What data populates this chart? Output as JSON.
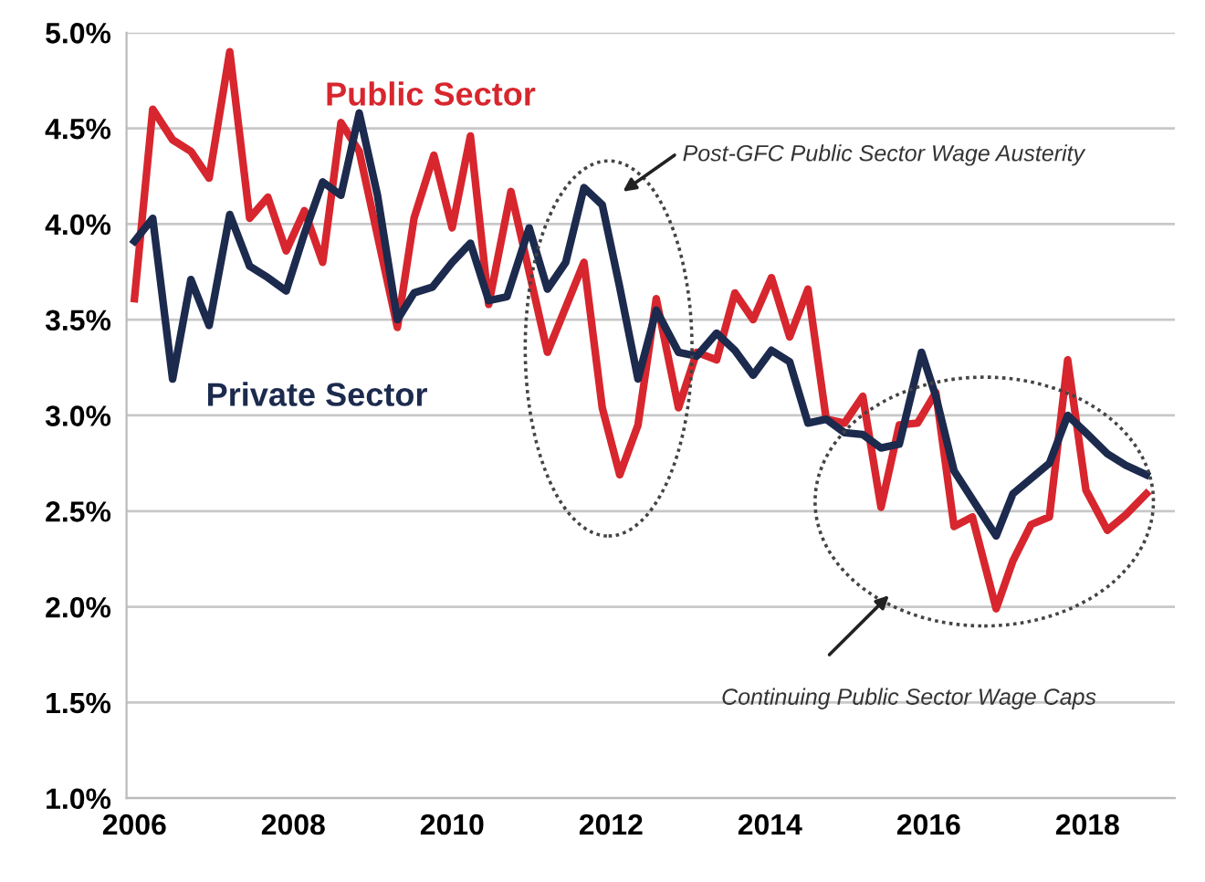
{
  "chart_data": {
    "type": "line",
    "series": [
      {
        "name": "Public Sector",
        "color": "#d7262e",
        "x": [
          2006.0,
          2006.23,
          2006.48,
          2006.71,
          2006.94,
          2007.2,
          2007.45,
          2007.68,
          2007.91,
          2008.14,
          2008.37,
          2008.6,
          2008.83,
          2009.31,
          2009.52,
          2009.77,
          2010.0,
          2010.23,
          2010.46,
          2010.74,
          2011.2,
          2011.66,
          2011.89,
          2012.11,
          2012.34,
          2012.57,
          2012.85,
          2013.08,
          2013.33,
          2013.56,
          2013.79,
          2014.02,
          2014.25,
          2014.48,
          2014.71,
          2014.94,
          2015.17,
          2015.4,
          2015.63,
          2015.86,
          2016.09,
          2016.32,
          2016.55,
          2016.85,
          2017.06,
          2017.29,
          2017.52,
          2017.75,
          2017.98,
          2018.25,
          2018.48,
          2018.74
        ],
        "values": [
          3.61,
          4.6,
          4.44,
          4.38,
          4.24,
          4.9,
          4.03,
          4.14,
          3.86,
          4.07,
          3.8,
          4.53,
          4.38,
          3.46,
          4.03,
          4.36,
          3.98,
          4.46,
          3.58,
          4.17,
          3.33,
          3.8,
          3.04,
          2.69,
          2.95,
          3.61,
          3.04,
          3.33,
          3.29,
          3.64,
          3.5,
          3.72,
          3.41,
          3.66,
          2.98,
          2.96,
          3.1,
          2.52,
          2.95,
          2.96,
          3.12,
          2.42,
          2.47,
          1.99,
          2.24,
          2.43,
          2.47,
          3.29,
          2.61,
          2.4,
          2.48,
          2.59
        ]
      },
      {
        "name": "Private Sector",
        "color": "#1c2a4d",
        "x": [
          2006.0,
          2006.23,
          2006.48,
          2006.71,
          2006.94,
          2007.2,
          2007.45,
          2007.68,
          2007.91,
          2008.14,
          2008.37,
          2008.6,
          2008.83,
          2009.06,
          2009.31,
          2009.52,
          2009.75,
          2010.0,
          2010.23,
          2010.46,
          2010.69,
          2010.97,
          2011.2,
          2011.43,
          2011.66,
          2011.89,
          2012.11,
          2012.34,
          2012.57,
          2012.85,
          2013.08,
          2013.33,
          2013.56,
          2013.79,
          2014.02,
          2014.25,
          2014.48,
          2014.71,
          2014.94,
          2015.17,
          2015.4,
          2015.63,
          2015.91,
          2016.09,
          2016.32,
          2016.6,
          2016.85,
          2017.06,
          2017.29,
          2017.52,
          2017.75,
          2017.98,
          2018.25,
          2018.48,
          2018.74
        ],
        "values": [
          3.91,
          4.03,
          3.19,
          3.71,
          3.47,
          4.05,
          3.78,
          3.72,
          3.65,
          3.95,
          4.22,
          4.15,
          4.58,
          4.15,
          3.5,
          3.64,
          3.67,
          3.8,
          3.9,
          3.6,
          3.62,
          3.98,
          3.66,
          3.8,
          4.19,
          4.1,
          3.67,
          3.19,
          3.55,
          3.33,
          3.31,
          3.43,
          3.34,
          3.21,
          3.34,
          3.28,
          2.96,
          2.98,
          2.91,
          2.9,
          2.83,
          2.85,
          3.33,
          3.1,
          2.71,
          2.53,
          2.37,
          2.59,
          2.67,
          2.75,
          3.0,
          2.91,
          2.8,
          2.74,
          2.69
        ]
      }
    ],
    "xlim": [
      2005.9,
      2019.1
    ],
    "xticks": [
      2006,
      2008,
      2010,
      2012,
      2014,
      2016,
      2018
    ],
    "ylim": [
      1.0,
      5.0
    ],
    "yticks": [
      {
        "value": 1.0,
        "label": "1.0%"
      },
      {
        "value": 1.5,
        "label": "1.5%"
      },
      {
        "value": 2.0,
        "label": "2.0%"
      },
      {
        "value": 2.5,
        "label": "2.5%"
      },
      {
        "value": 3.0,
        "label": "3.0%"
      },
      {
        "value": 3.5,
        "label": "3.5%"
      },
      {
        "value": 4.0,
        "label": "4.0%"
      },
      {
        "value": 4.5,
        "label": "4.5%"
      },
      {
        "value": 5.0,
        "label": "5.0%"
      }
    ],
    "grid": "y",
    "legend": false,
    "marker": "none",
    "line_style": "solid",
    "annotations": [
      "Post-GFC Public Sector Wage Austerity",
      "Continuing Public Sector Wage Caps"
    ]
  }
}
